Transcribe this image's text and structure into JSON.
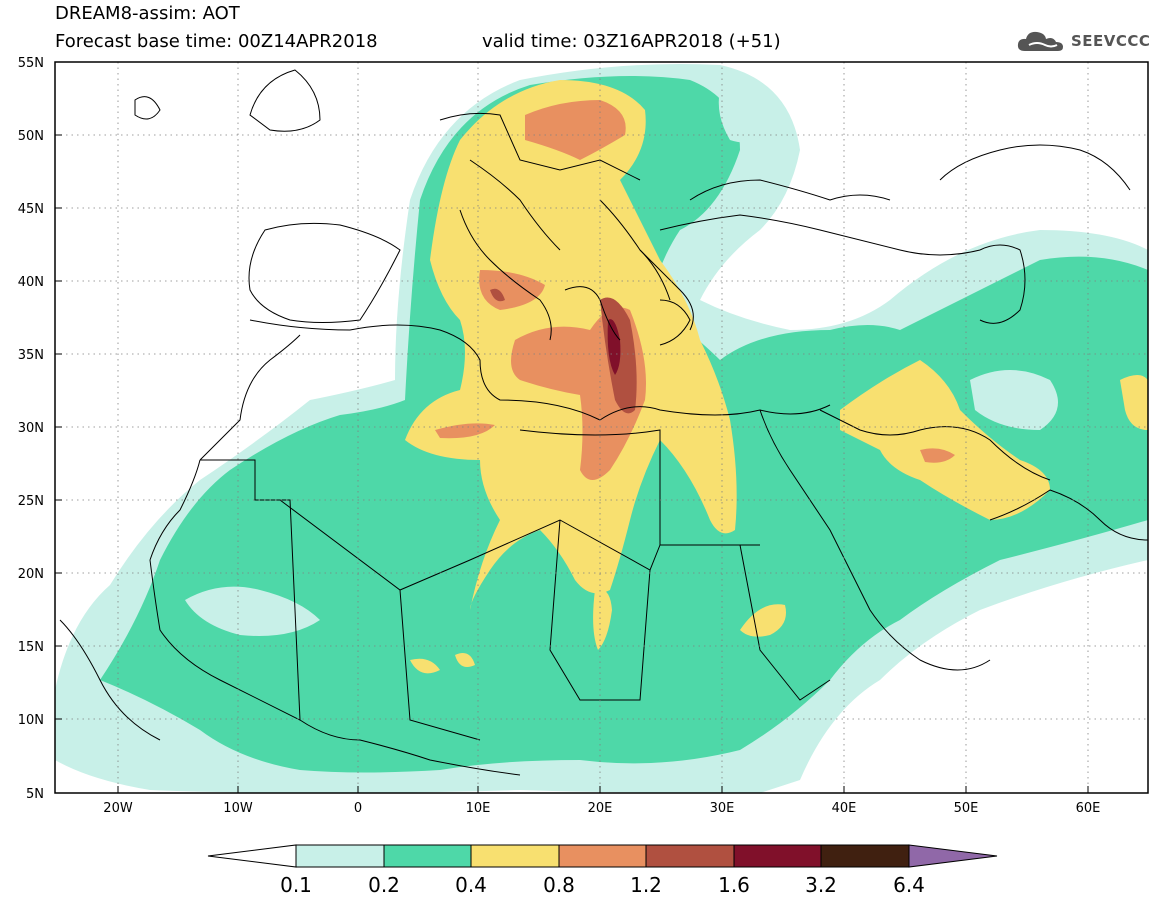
{
  "header": {
    "title_line1": "DREAM8-assim: AOT",
    "title_line2": "Forecast base time: 00Z14APR2018",
    "valid_label": "valid time: 03Z16APR2018 (+51)",
    "logo_text": "SEEVCCC",
    "logo_icon": "cloud-icon"
  },
  "map_axes": {
    "lat_labels": [
      "55N",
      "50N",
      "45N",
      "40N",
      "35N",
      "30N",
      "25N",
      "20N",
      "15N",
      "10N",
      "5N"
    ],
    "lon_labels": [
      "20W",
      "10W",
      "0",
      "10E",
      "20E",
      "30E",
      "40E",
      "50E",
      "60E"
    ],
    "lon_range": [
      -25,
      65
    ],
    "lat_range": [
      5,
      55
    ],
    "grid": "dotted"
  },
  "colorbar": {
    "labels": [
      "0.1",
      "0.2",
      "0.4",
      "0.8",
      "1.2",
      "1.6",
      "3.2",
      "6.4"
    ],
    "colors": [
      "#ffffff",
      "#c8f0e8",
      "#4ed8a8",
      "#f8e070",
      "#e89060",
      "#b05040",
      "#80102a",
      "#402010",
      "#9068a8"
    ]
  },
  "palette": {
    "aot_01": "#c8f0e8",
    "aot_02": "#4ed8a8",
    "aot_04": "#f8e070",
    "aot_08": "#e89060",
    "aot_12": "#b05040",
    "aot_16": "#80102a"
  }
}
